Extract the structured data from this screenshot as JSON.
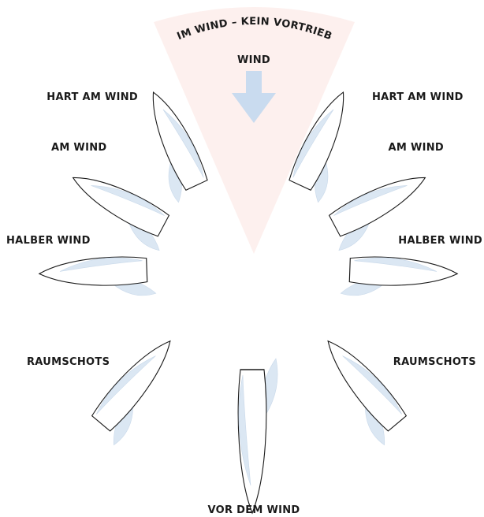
{
  "no_go_zone": {
    "label": "IM WIND – KEIN VORTRIEB"
  },
  "wind": {
    "label": "WIND"
  },
  "points_of_sail": [
    {
      "label": "HART AM WIND"
    },
    {
      "label": "HART AM WIND"
    },
    {
      "label": "AM WIND"
    },
    {
      "label": "AM WIND"
    },
    {
      "label": "HALBER WIND"
    },
    {
      "label": "HALBER WIND"
    },
    {
      "label": "RAUMSCHOTS"
    },
    {
      "label": "RAUMSCHOTS"
    },
    {
      "label": "VOR DEM WIND"
    }
  ]
}
